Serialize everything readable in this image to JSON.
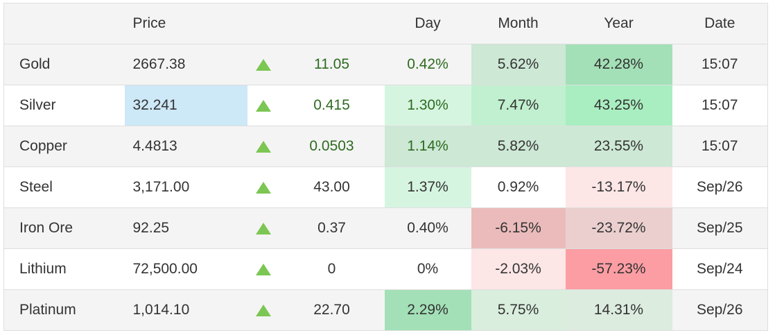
{
  "headers": {
    "name": "",
    "price": "Price",
    "arrow": "",
    "change": "",
    "day": "Day",
    "month": "Month",
    "year": "Year",
    "date": "Date"
  },
  "rows": [
    {
      "name": "Gold",
      "price": "2667.38",
      "trend": "up",
      "change": "11.05",
      "change_green": true,
      "day": "0.42%",
      "day_bg": "",
      "day_green": true,
      "month": "5.62%",
      "month_bg": "#cde8d5",
      "year": "42.28%",
      "year_bg": "#a3e0b7",
      "date": "15:07"
    },
    {
      "name": "Silver",
      "price": "32.241",
      "price_bg": "#cde8f7",
      "trend": "up",
      "change": "0.415",
      "change_green": true,
      "day": "1.30%",
      "day_bg": "#d6f5e1",
      "day_green": true,
      "month": "7.47%",
      "month_bg": "#c0f0cf",
      "year": "43.25%",
      "year_bg": "#a9eec0",
      "date": "15:07"
    },
    {
      "name": "Copper",
      "price": "4.4813",
      "trend": "up",
      "change": "0.0503",
      "change_green": true,
      "day": "1.14%",
      "day_bg": "#cde8d5",
      "day_green": true,
      "month": "5.82%",
      "month_bg": "#cde8d5",
      "year": "23.55%",
      "year_bg": "#cde8d5",
      "date": "15:07"
    },
    {
      "name": "Steel",
      "price": "3,171.00",
      "trend": "up",
      "change": "43.00",
      "change_green": false,
      "day": "1.37%",
      "day_bg": "#d6f5e1",
      "day_green": false,
      "month": "0.92%",
      "month_bg": "",
      "year": "-13.17%",
      "year_bg": "#fde6e6",
      "date": "Sep/26"
    },
    {
      "name": "Iron Ore",
      "price": "92.25",
      "trend": "up",
      "change": "0.37",
      "change_green": false,
      "day": "0.40%",
      "day_bg": "",
      "day_green": false,
      "month": "-6.15%",
      "month_bg": "#ebbbbb",
      "year": "-23.72%",
      "year_bg": "#ebcfcf",
      "date": "Sep/25"
    },
    {
      "name": "Lithium",
      "price": "72,500.00",
      "trend": "up",
      "change": "0",
      "change_green": false,
      "day": "0%",
      "day_bg": "",
      "day_green": false,
      "month": "-2.03%",
      "month_bg": "#fde6e6",
      "year": "-57.23%",
      "year_bg": "#fb9da3",
      "date": "Sep/24"
    },
    {
      "name": "Platinum",
      "price": "1,014.10",
      "trend": "up",
      "change": "22.70",
      "change_green": false,
      "day": "2.29%",
      "day_bg": "#a3e0b7",
      "day_green": false,
      "month": "5.75%",
      "month_bg": "#d9eedd",
      "year": "14.31%",
      "year_bg": "#dcecdf",
      "date": "Sep/26"
    }
  ],
  "colors": {
    "up_arrow": "#7cc653",
    "positive_text": "#2d6b1f"
  }
}
